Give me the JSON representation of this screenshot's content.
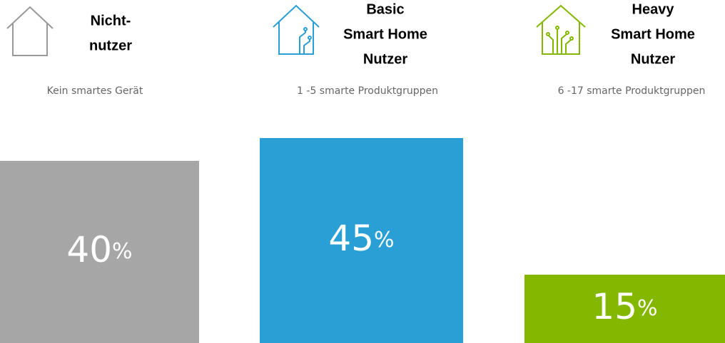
{
  "chart_data": {
    "type": "bar",
    "categories": [
      [
        "Nicht-",
        "nutzer"
      ],
      [
        "Basic",
        "Smart Home",
        "Nutzer"
      ],
      [
        "Heavy",
        "Smart Home",
        "Nutzer"
      ]
    ],
    "descriptions": [
      "Kein smartes Gerät",
      "1 -5 smarte Produktgruppen",
      "6 -17 smarte Produktgruppen"
    ],
    "values": [
      40,
      45,
      15
    ],
    "value_labels": [
      "40%",
      "45%",
      "15%"
    ],
    "colors": [
      "#a6a6a6",
      "#2a9fd6",
      "#84b800"
    ]
  }
}
